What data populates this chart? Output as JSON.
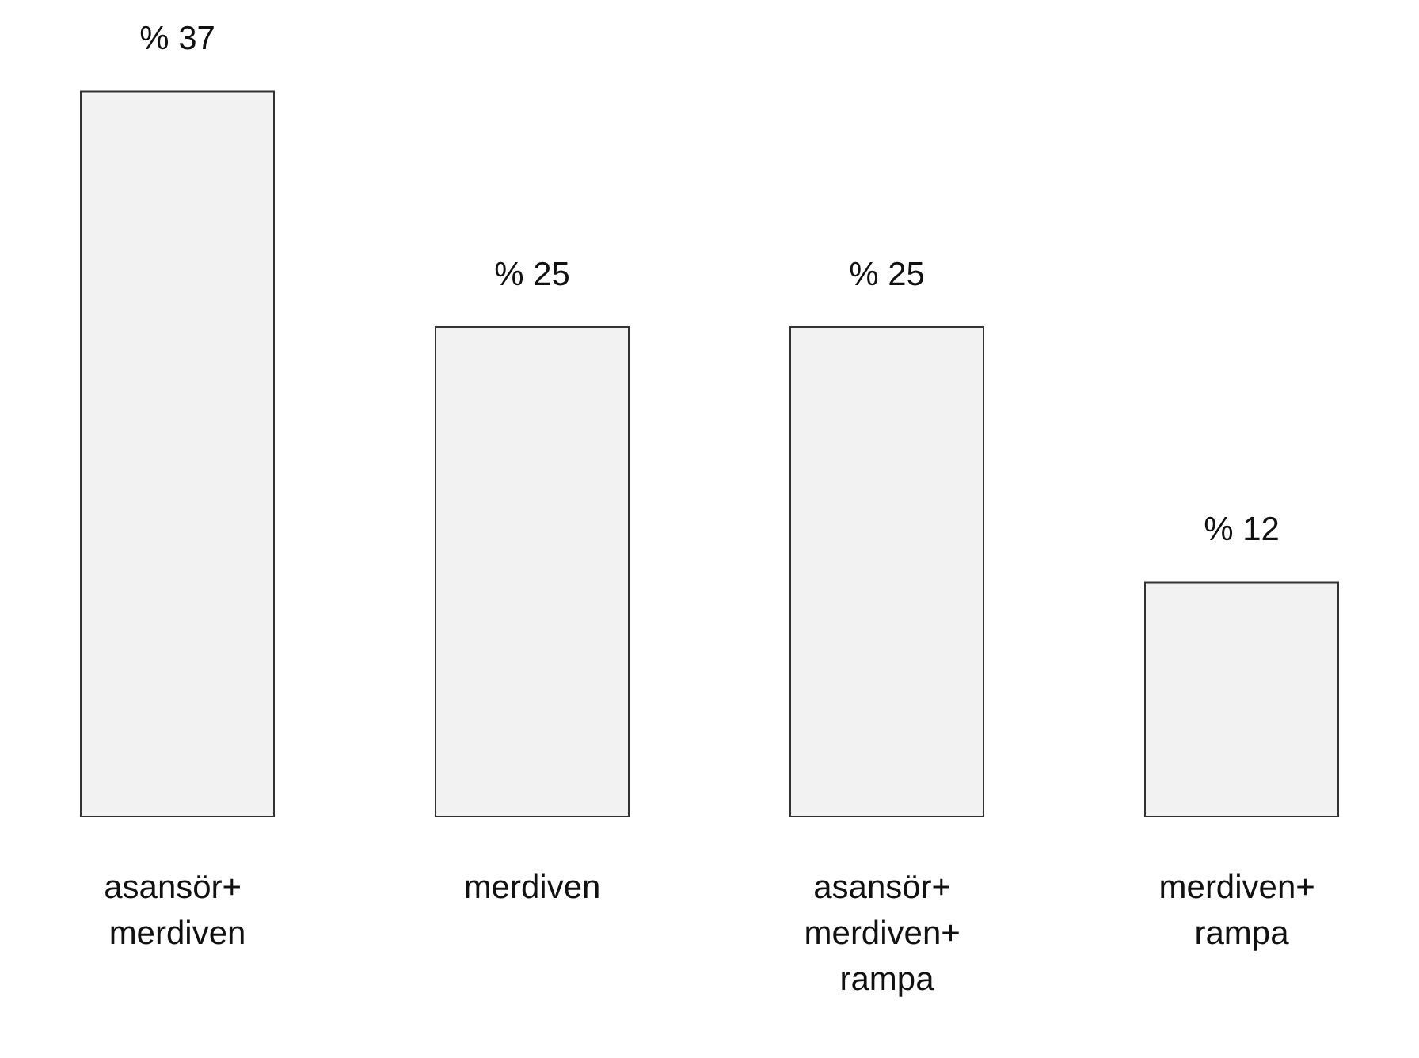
{
  "chart_data": {
    "type": "bar",
    "categories": [
      "asansör+ merdiven",
      "merdiven",
      "asansör+ merdiven+ rampa",
      "merdiven+ rampa"
    ],
    "values": [
      37,
      25,
      25,
      12
    ],
    "value_labels": [
      "% 37",
      "% 25",
      "% 25",
      "% 12"
    ],
    "color": "#f2f2f2"
  }
}
